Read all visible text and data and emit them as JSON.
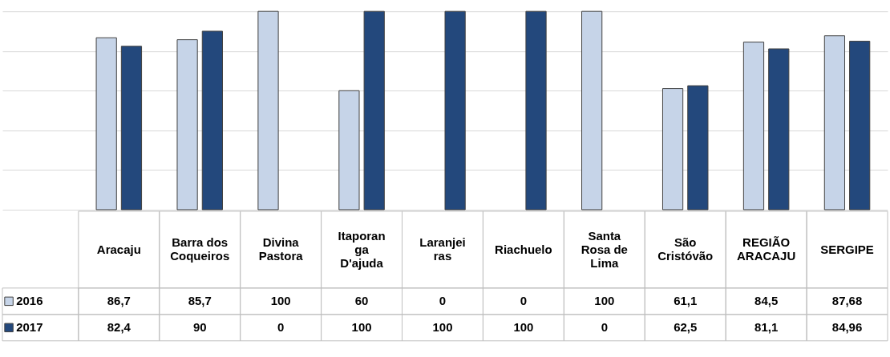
{
  "chart_data": {
    "type": "bar",
    "categories": [
      "Aracaju",
      "Barra dos Coqueiros",
      "Divina Pastora",
      "Itaporanga D'ajuda",
      "Laranjeiras",
      "Riachuelo",
      "Santa Rosa de Lima",
      "São Cristóvão",
      "REGIÃO ARACAJU",
      "SERGIPE"
    ],
    "series": [
      {
        "name": "2016",
        "color": "#c6d4e8",
        "values": [
          86.7,
          85.7,
          100,
          60,
          0,
          0,
          100,
          61.1,
          84.5,
          87.68
        ],
        "value_labels": [
          "86,7",
          "85,7",
          "100",
          "60",
          "0",
          "0",
          "100",
          "61,1",
          "84,5",
          "87,68"
        ]
      },
      {
        "name": "2017",
        "color": "#23487c",
        "values": [
          82.4,
          90,
          0,
          100,
          100,
          100,
          0,
          62.5,
          81.1,
          84.96
        ],
        "value_labels": [
          "82,4",
          "90",
          "0",
          "100",
          "100",
          "100",
          "0",
          "62,5",
          "81,1",
          "84,96"
        ]
      }
    ],
    "grid": "y",
    "legend": "bottom left",
    "tick_labels": "x"
  }
}
